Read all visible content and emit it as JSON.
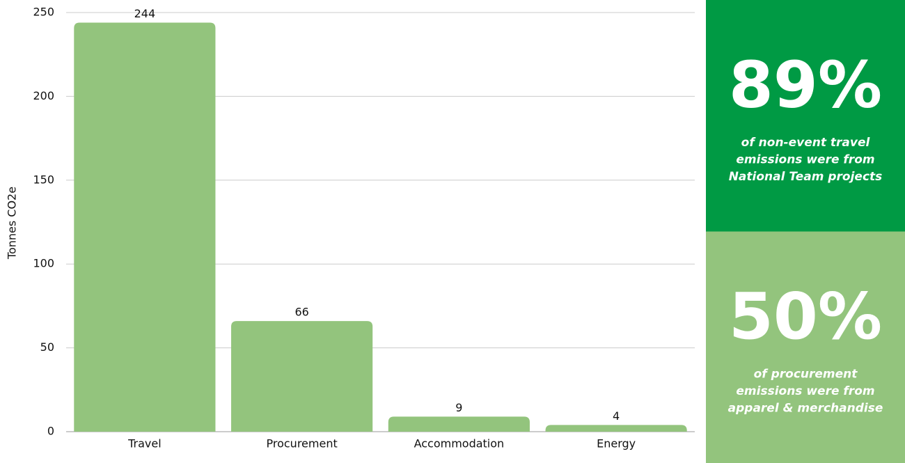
{
  "chart_data": {
    "type": "bar",
    "ylabel": "Tonnes CO2e",
    "categories": [
      "Travel",
      "Procurement",
      "Accommodation",
      "Energy"
    ],
    "values": [
      244,
      66,
      9,
      4
    ],
    "color": "#93c47d",
    "ylim": [
      0,
      250
    ],
    "yticks": [
      0,
      50,
      100,
      150,
      200,
      250
    ],
    "grid": true
  },
  "stats": [
    {
      "figure": "89%",
      "lines": [
        "of non-event travel",
        "emissions were from",
        "National Team projects"
      ],
      "color": "#009a44"
    },
    {
      "figure": "50%",
      "lines": [
        "of procurement",
        "emissions were from",
        "apparel & merchandise"
      ],
      "color": "#93c47d"
    }
  ]
}
